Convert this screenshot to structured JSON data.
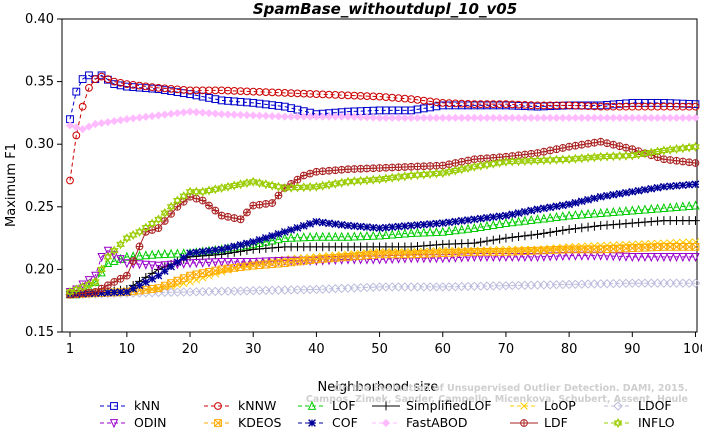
{
  "chart_data": {
    "type": "line",
    "title": "SpamBase_withoutdupl_10_v05",
    "xlabel": "Neighborhood size",
    "ylabel": "Maximum F1",
    "xlim": [
      1,
      100
    ],
    "ylim": [
      0.15,
      0.4
    ],
    "xticks": [
      1,
      10,
      20,
      30,
      40,
      50,
      60,
      70,
      80,
      90,
      100
    ],
    "yticks": [
      0.15,
      0.2,
      0.25,
      0.3,
      0.35,
      0.4
    ],
    "xtick_labels": [
      "1",
      "10",
      "20",
      "30",
      "40",
      "50",
      "60",
      "70",
      "80",
      "90",
      "100"
    ],
    "ytick_labels": [
      "0.15",
      "0.20",
      "0.25",
      "0.30",
      "0.35",
      "0.40"
    ],
    "grid": false,
    "legend_position": "bottom",
    "watermark": [
      "Campos, Zimek, Sander, Campello, Micenkova, Schubert, Assent, Houle",
      "On the Evaluation of Unsupervised Outlier Detection. DAMI, 2015."
    ],
    "series": [
      {
        "name": "kNN",
        "color": "#0000cc",
        "marker": "square",
        "dash": "4,3",
        "points": [
          [
            1,
            0.32
          ],
          [
            2,
            0.342
          ],
          [
            3,
            0.352
          ],
          [
            4,
            0.355
          ],
          [
            5,
            0.352
          ],
          [
            6,
            0.355
          ],
          [
            8,
            0.348
          ],
          [
            10,
            0.346
          ],
          [
            15,
            0.344
          ],
          [
            20,
            0.34
          ],
          [
            25,
            0.335
          ],
          [
            30,
            0.333
          ],
          [
            35,
            0.33
          ],
          [
            40,
            0.324
          ],
          [
            45,
            0.326
          ],
          [
            50,
            0.327
          ],
          [
            55,
            0.327
          ],
          [
            60,
            0.331
          ],
          [
            65,
            0.331
          ],
          [
            70,
            0.331
          ],
          [
            75,
            0.33
          ],
          [
            80,
            0.331
          ],
          [
            85,
            0.331
          ],
          [
            90,
            0.333
          ],
          [
            95,
            0.333
          ],
          [
            100,
            0.332
          ]
        ]
      },
      {
        "name": "kNNW",
        "color": "#cc0000",
        "marker": "circle",
        "dash": "4,3",
        "points": [
          [
            1,
            0.271
          ],
          [
            2,
            0.307
          ],
          [
            3,
            0.33
          ],
          [
            4,
            0.345
          ],
          [
            5,
            0.352
          ],
          [
            6,
            0.354
          ],
          [
            8,
            0.35
          ],
          [
            10,
            0.348
          ],
          [
            15,
            0.345
          ],
          [
            20,
            0.343
          ],
          [
            25,
            0.343
          ],
          [
            30,
            0.342
          ],
          [
            35,
            0.341
          ],
          [
            40,
            0.34
          ],
          [
            45,
            0.339
          ],
          [
            50,
            0.338
          ],
          [
            55,
            0.336
          ],
          [
            60,
            0.333
          ],
          [
            65,
            0.332
          ],
          [
            70,
            0.332
          ],
          [
            75,
            0.331
          ],
          [
            80,
            0.331
          ],
          [
            85,
            0.33
          ],
          [
            90,
            0.33
          ],
          [
            95,
            0.33
          ],
          [
            100,
            0.33
          ]
        ]
      },
      {
        "name": "LOF",
        "color": "#00cc00",
        "marker": "triangle-up",
        "dash": "4,3",
        "points": [
          [
            1,
            0.18
          ],
          [
            2,
            0.18
          ],
          [
            3,
            0.181
          ],
          [
            5,
            0.19
          ],
          [
            7,
            0.205
          ],
          [
            10,
            0.21
          ],
          [
            15,
            0.212
          ],
          [
            20,
            0.213
          ],
          [
            25,
            0.216
          ],
          [
            30,
            0.22
          ],
          [
            35,
            0.225
          ],
          [
            40,
            0.226
          ],
          [
            45,
            0.226
          ],
          [
            50,
            0.227
          ],
          [
            55,
            0.229
          ],
          [
            60,
            0.23
          ],
          [
            65,
            0.233
          ],
          [
            70,
            0.237
          ],
          [
            75,
            0.24
          ],
          [
            80,
            0.243
          ],
          [
            85,
            0.245
          ],
          [
            90,
            0.247
          ],
          [
            95,
            0.249
          ],
          [
            100,
            0.251
          ]
        ]
      },
      {
        "name": "SimplifiedLOF",
        "color": "#000000",
        "marker": "plus",
        "dash": "none",
        "points": [
          [
            1,
            0.18
          ],
          [
            5,
            0.181
          ],
          [
            10,
            0.184
          ],
          [
            15,
            0.2
          ],
          [
            20,
            0.21
          ],
          [
            25,
            0.212
          ],
          [
            30,
            0.216
          ],
          [
            35,
            0.218
          ],
          [
            40,
            0.218
          ],
          [
            45,
            0.218
          ],
          [
            50,
            0.218
          ],
          [
            55,
            0.218
          ],
          [
            60,
            0.22
          ],
          [
            65,
            0.221
          ],
          [
            70,
            0.225
          ],
          [
            75,
            0.228
          ],
          [
            80,
            0.232
          ],
          [
            85,
            0.235
          ],
          [
            90,
            0.237
          ],
          [
            95,
            0.239
          ],
          [
            100,
            0.239
          ]
        ]
      },
      {
        "name": "LoOP",
        "color": "#ffcc00",
        "marker": "x",
        "dash": "4,3",
        "points": [
          [
            1,
            0.18
          ],
          [
            5,
            0.181
          ],
          [
            10,
            0.183
          ],
          [
            15,
            0.184
          ],
          [
            20,
            0.19
          ],
          [
            25,
            0.198
          ],
          [
            30,
            0.205
          ],
          [
            35,
            0.208
          ],
          [
            40,
            0.21
          ],
          [
            45,
            0.212
          ],
          [
            50,
            0.214
          ],
          [
            55,
            0.214
          ],
          [
            60,
            0.215
          ],
          [
            65,
            0.215
          ],
          [
            70,
            0.216
          ],
          [
            75,
            0.216
          ],
          [
            80,
            0.218
          ],
          [
            85,
            0.219
          ],
          [
            90,
            0.22
          ],
          [
            95,
            0.221
          ],
          [
            100,
            0.222
          ]
        ]
      },
      {
        "name": "LDOF",
        "color": "#bbbbdd",
        "marker": "diamond",
        "dash": "4,3",
        "points": [
          [
            1,
            0.18
          ],
          [
            10,
            0.181
          ],
          [
            20,
            0.182
          ],
          [
            30,
            0.183
          ],
          [
            40,
            0.184
          ],
          [
            50,
            0.186
          ],
          [
            60,
            0.186
          ],
          [
            70,
            0.187
          ],
          [
            80,
            0.188
          ],
          [
            90,
            0.189
          ],
          [
            100,
            0.189
          ]
        ]
      },
      {
        "name": "ODIN",
        "color": "#9900cc",
        "marker": "triangle-down",
        "dash": "4,3",
        "points": [
          [
            1,
            0.182
          ],
          [
            2,
            0.184
          ],
          [
            3,
            0.188
          ],
          [
            5,
            0.195
          ],
          [
            6,
            0.21
          ],
          [
            7,
            0.215
          ],
          [
            10,
            0.205
          ],
          [
            15,
            0.203
          ],
          [
            20,
            0.205
          ],
          [
            25,
            0.206
          ],
          [
            30,
            0.206
          ],
          [
            35,
            0.207
          ],
          [
            40,
            0.207
          ],
          [
            45,
            0.208
          ],
          [
            50,
            0.208
          ],
          [
            55,
            0.209
          ],
          [
            60,
            0.209
          ],
          [
            65,
            0.21
          ],
          [
            70,
            0.21
          ],
          [
            75,
            0.21
          ],
          [
            80,
            0.211
          ],
          [
            85,
            0.211
          ],
          [
            90,
            0.21
          ],
          [
            95,
            0.21
          ],
          [
            100,
            0.21
          ]
        ]
      },
      {
        "name": "KDEOS",
        "color": "#ffaa00",
        "marker": "square-x",
        "dash": "4,3",
        "points": [
          [
            1,
            0.18
          ],
          [
            5,
            0.181
          ],
          [
            10,
            0.182
          ],
          [
            15,
            0.185
          ],
          [
            20,
            0.195
          ],
          [
            25,
            0.2
          ],
          [
            30,
            0.203
          ],
          [
            35,
            0.205
          ],
          [
            40,
            0.208
          ],
          [
            45,
            0.21
          ],
          [
            50,
            0.212
          ],
          [
            55,
            0.212
          ],
          [
            60,
            0.213
          ],
          [
            65,
            0.214
          ],
          [
            70,
            0.214
          ],
          [
            75,
            0.215
          ],
          [
            80,
            0.216
          ],
          [
            85,
            0.216
          ],
          [
            90,
            0.217
          ],
          [
            95,
            0.218
          ],
          [
            100,
            0.218
          ]
        ]
      },
      {
        "name": "COF",
        "color": "#000099",
        "marker": "asterisk",
        "dash": "4,3",
        "points": [
          [
            1,
            0.18
          ],
          [
            5,
            0.181
          ],
          [
            10,
            0.182
          ],
          [
            15,
            0.195
          ],
          [
            20,
            0.213
          ],
          [
            25,
            0.216
          ],
          [
            30,
            0.222
          ],
          [
            35,
            0.23
          ],
          [
            40,
            0.238
          ],
          [
            45,
            0.235
          ],
          [
            50,
            0.233
          ],
          [
            55,
            0.235
          ],
          [
            60,
            0.237
          ],
          [
            65,
            0.24
          ],
          [
            70,
            0.243
          ],
          [
            75,
            0.248
          ],
          [
            80,
            0.252
          ],
          [
            85,
            0.258
          ],
          [
            90,
            0.262
          ],
          [
            95,
            0.266
          ],
          [
            100,
            0.268
          ]
        ]
      },
      {
        "name": "FastABOD",
        "color": "#ffbbff",
        "marker": "diamond-filled",
        "dash": "4,3",
        "points": [
          [
            1,
            0.315
          ],
          [
            3,
            0.312
          ],
          [
            5,
            0.316
          ],
          [
            10,
            0.32
          ],
          [
            15,
            0.323
          ],
          [
            20,
            0.326
          ],
          [
            25,
            0.324
          ],
          [
            30,
            0.323
          ],
          [
            35,
            0.322
          ],
          [
            40,
            0.322
          ],
          [
            45,
            0.322
          ],
          [
            50,
            0.321
          ],
          [
            55,
            0.321
          ],
          [
            60,
            0.321
          ],
          [
            65,
            0.321
          ],
          [
            70,
            0.321
          ],
          [
            75,
            0.321
          ],
          [
            80,
            0.321
          ],
          [
            85,
            0.321
          ],
          [
            90,
            0.321
          ],
          [
            95,
            0.321
          ],
          [
            100,
            0.321
          ]
        ]
      },
      {
        "name": "LDF",
        "color": "#aa2222",
        "marker": "circle-plus",
        "dash": "none",
        "points": [
          [
            1,
            0.18
          ],
          [
            5,
            0.182
          ],
          [
            8,
            0.19
          ],
          [
            10,
            0.195
          ],
          [
            13,
            0.23
          ],
          [
            15,
            0.233
          ],
          [
            18,
            0.25
          ],
          [
            20,
            0.258
          ],
          [
            22,
            0.255
          ],
          [
            25,
            0.243
          ],
          [
            28,
            0.24
          ],
          [
            30,
            0.251
          ],
          [
            33,
            0.253
          ],
          [
            35,
            0.265
          ],
          [
            38,
            0.275
          ],
          [
            40,
            0.278
          ],
          [
            45,
            0.28
          ],
          [
            50,
            0.281
          ],
          [
            55,
            0.282
          ],
          [
            60,
            0.283
          ],
          [
            65,
            0.288
          ],
          [
            70,
            0.29
          ],
          [
            75,
            0.293
          ],
          [
            80,
            0.298
          ],
          [
            85,
            0.302
          ],
          [
            90,
            0.296
          ],
          [
            95,
            0.288
          ],
          [
            100,
            0.285
          ]
        ]
      },
      {
        "name": "INFLO",
        "color": "#99cc00",
        "marker": "star6",
        "dash": "4,3",
        "points": [
          [
            1,
            0.182
          ],
          [
            5,
            0.19
          ],
          [
            7,
            0.21
          ],
          [
            10,
            0.225
          ],
          [
            12,
            0.23
          ],
          [
            15,
            0.24
          ],
          [
            18,
            0.255
          ],
          [
            20,
            0.262
          ],
          [
            22,
            0.262
          ],
          [
            25,
            0.265
          ],
          [
            28,
            0.268
          ],
          [
            30,
            0.27
          ],
          [
            35,
            0.265
          ],
          [
            40,
            0.266
          ],
          [
            45,
            0.27
          ],
          [
            50,
            0.272
          ],
          [
            55,
            0.275
          ],
          [
            60,
            0.277
          ],
          [
            65,
            0.282
          ],
          [
            70,
            0.286
          ],
          [
            75,
            0.287
          ],
          [
            80,
            0.288
          ],
          [
            85,
            0.29
          ],
          [
            90,
            0.291
          ],
          [
            95,
            0.295
          ],
          [
            100,
            0.298
          ]
        ]
      }
    ]
  }
}
